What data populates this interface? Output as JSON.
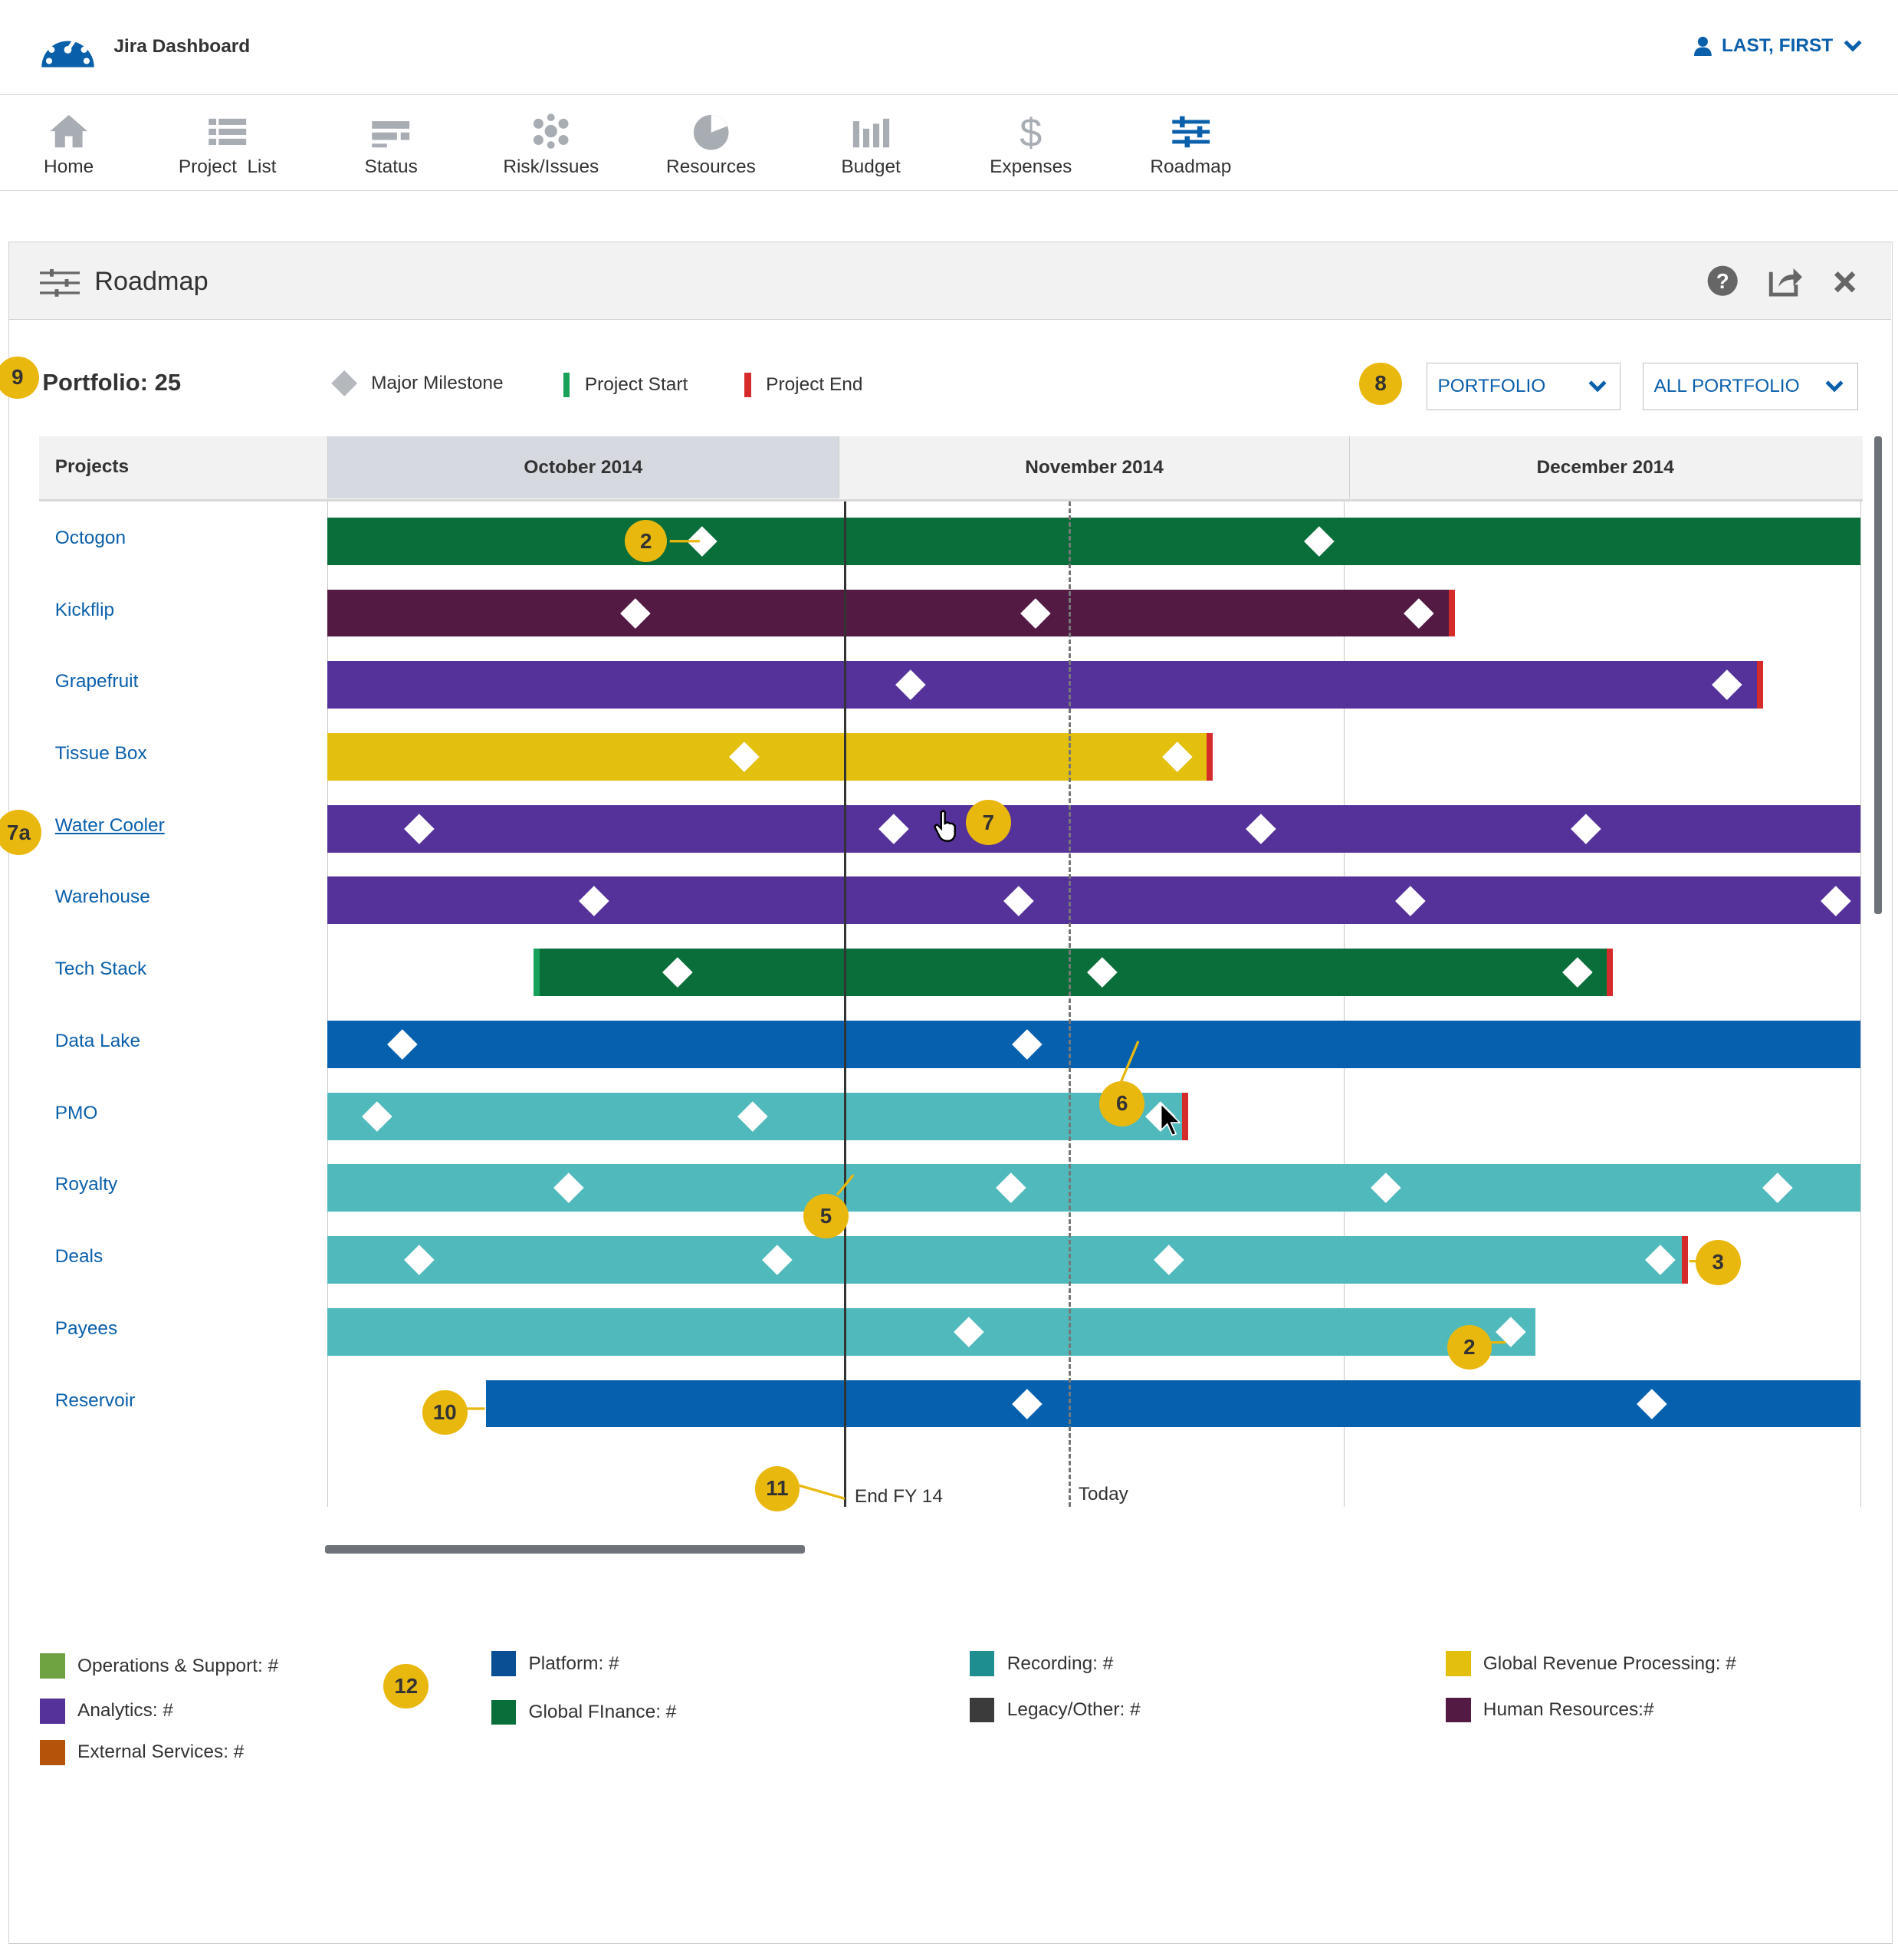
{
  "app": {
    "title": "Jira Dashboard",
    "user": "LAST, FIRST"
  },
  "nav": [
    {
      "label": "Home",
      "icon": "home-icon"
    },
    {
      "label": "Project  List",
      "icon": "list-icon"
    },
    {
      "label": "Status",
      "icon": "status-icon"
    },
    {
      "label": "Risk/Issues",
      "icon": "risk-icon"
    },
    {
      "label": "Resources",
      "icon": "pie-icon"
    },
    {
      "label": "Budget",
      "icon": "bar-chart-icon"
    },
    {
      "label": "Expenses",
      "icon": "dollar-icon"
    },
    {
      "label": "Roadmap",
      "icon": "sliders-icon"
    }
  ],
  "panel": {
    "title": "Roadmap"
  },
  "toolbar": {
    "portfolio_label": "Portfolio: 25",
    "legend": {
      "milestone": "Major Milestone",
      "start": "Project Start",
      "end": "Project End"
    },
    "select1": "PORTFOLIO",
    "select2": "ALL PORTFOLIO"
  },
  "callouts": {
    "c9": "9",
    "c8": "8",
    "c7a": "7a",
    "c7": "7",
    "c2a": "2",
    "c6": "6",
    "c5": "5",
    "c3": "3",
    "c2b": "2",
    "c10": "10",
    "c11": "11",
    "c12": "12"
  },
  "grid": {
    "header": "Projects",
    "months": [
      "October 2014",
      "November 2014",
      "December 2014"
    ],
    "end_fy_label": "End FY 14",
    "today_label": "Today"
  },
  "colors": {
    "green": "#0a6e3a",
    "maroon": "#531a44",
    "purple": "#55319a",
    "yellow": "#e3c00e",
    "blue": "#0660ad",
    "teal": "#4fb9bb"
  },
  "chart_data": {
    "type": "gantt",
    "x_unit": "days since 2014-10-01",
    "x_range": [
      0,
      92
    ],
    "markers": [
      {
        "label": "End FY 14",
        "day": 31
      },
      {
        "label": "Today",
        "day": 44.5
      }
    ],
    "projects": [
      {
        "name": "Octogon",
        "color": "green",
        "start": 0,
        "end": 92,
        "milestones": [
          22.5,
          59.5
        ],
        "has_end": false,
        "has_start": false
      },
      {
        "name": "Kickflip",
        "color": "maroon",
        "start": 0,
        "end": 67.5,
        "milestones": [
          18.5,
          42.5,
          65.5
        ],
        "has_end": true,
        "has_start": false
      },
      {
        "name": "Grapefruit",
        "color": "purple",
        "start": 0,
        "end": 86,
        "milestones": [
          35,
          84
        ],
        "has_end": true,
        "has_start": false
      },
      {
        "name": "Tissue Box",
        "color": "yellow",
        "start": 0,
        "end": 53,
        "milestones": [
          25,
          51
        ],
        "has_end": true,
        "has_start": false
      },
      {
        "name": "Water Cooler",
        "color": "purple",
        "start": 0,
        "end": 92,
        "milestones": [
          5.5,
          34,
          56,
          75.5
        ],
        "has_end": false,
        "has_start": false
      },
      {
        "name": "Warehouse",
        "color": "purple",
        "start": 0,
        "end": 92,
        "milestones": [
          16,
          41.5,
          65,
          90.5
        ],
        "has_end": false,
        "has_start": false
      },
      {
        "name": "Tech Stack",
        "color": "green",
        "start": 12.5,
        "end": 77,
        "milestones": [
          21,
          46.5,
          75
        ],
        "has_end": true,
        "has_start": true
      },
      {
        "name": "Data Lake",
        "color": "blue",
        "start": 0,
        "end": 92,
        "milestones": [
          4.5,
          42
        ],
        "has_end": false,
        "has_start": false
      },
      {
        "name": "PMO",
        "color": "teal",
        "start": 0,
        "end": 51.5,
        "milestones": [
          3,
          25.5,
          50
        ],
        "has_end": true,
        "has_start": false
      },
      {
        "name": "Royalty",
        "color": "teal",
        "start": 0,
        "end": 92,
        "milestones": [
          14.5,
          41,
          63.5,
          87
        ],
        "has_end": false,
        "has_start": false
      },
      {
        "name": "Deals",
        "color": "teal",
        "start": 0,
        "end": 81.5,
        "milestones": [
          5.5,
          27,
          50.5,
          80
        ],
        "has_end": true,
        "has_start": false
      },
      {
        "name": "Payees",
        "color": "teal",
        "start": 0,
        "end": 72.5,
        "milestones": [
          38.5,
          71
        ],
        "has_end": false,
        "has_start": false
      },
      {
        "name": "Reservoir",
        "color": "blue",
        "start": 9.5,
        "end": 92,
        "milestones": [
          42,
          79.5
        ],
        "has_end": false,
        "has_start": false
      }
    ]
  },
  "categories": [
    {
      "label": "Operations & Support: #",
      "color": "#6fa341"
    },
    {
      "label": "Analytics: #",
      "color": "#55319a"
    },
    {
      "label": "External Services: #",
      "color": "#b45309"
    },
    {
      "label": "Platform: #",
      "color": "#0a4f94"
    },
    {
      "label": "Global FInance: #",
      "color": "#0a6e3a"
    },
    {
      "label": "Recording: #",
      "color": "#1f8e91"
    },
    {
      "label": "Legacy/Other: #",
      "color": "#3b3b3b"
    },
    {
      "label": "Global Revenue Processing: #",
      "color": "#e3c00e"
    },
    {
      "label": "Human Resources:#",
      "color": "#531a44"
    }
  ]
}
